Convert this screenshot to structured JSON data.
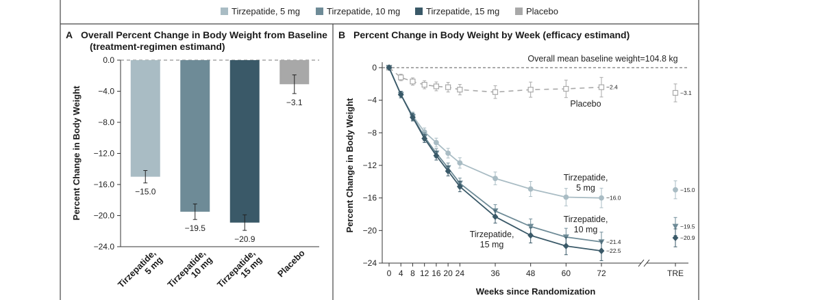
{
  "legend": [
    {
      "label": "Tirzepatide, 5 mg",
      "color": "#a9bcc4"
    },
    {
      "label": "Tirzepatide, 10 mg",
      "color": "#6e8b97"
    },
    {
      "label": "Tirzepatide, 15 mg",
      "color": "#3a5968"
    },
    {
      "label": "Placebo",
      "color": "#a8a8a8"
    }
  ],
  "chart_data": [
    {
      "type": "bar",
      "panel": "A",
      "title": "Overall Percent Change in Body Weight from Baseline",
      "subtitle": "(treatment-regimen estimand)",
      "ylabel": "Percent Change in Body Weight",
      "xlabel": "",
      "ylim": [
        -24.0,
        0.0
      ],
      "yticks": [
        0.0,
        -4.0,
        -8.0,
        -12.0,
        -16.0,
        -20.0,
        -24.0
      ],
      "ytick_labels": [
        "0.0",
        "−4.0",
        "−8.0",
        "−12.0",
        "−16.0",
        "−20.0",
        "−24.0"
      ],
      "categories": [
        [
          "Tirzepatide,",
          "5 mg"
        ],
        [
          "Tirzepatide,",
          "10 mg"
        ],
        [
          "Tirzepatide,",
          "15 mg"
        ],
        [
          "Placebo"
        ]
      ],
      "values": [
        -15.0,
        -19.5,
        -20.9,
        -3.1
      ],
      "value_labels": [
        "−15.0",
        "−19.5",
        "−20.9",
        "−3.1"
      ],
      "error": [
        0.8,
        1.0,
        1.0,
        1.2
      ],
      "colors": [
        "#a9bcc4",
        "#6e8b97",
        "#3a5968",
        "#a8a8a8"
      ]
    },
    {
      "type": "line",
      "panel": "B",
      "title": "Percent Change in Body Weight by Week (efficacy estimand)",
      "ylabel": "Percent Change in Body Weight",
      "xlabel": "Weeks since Randomization",
      "annotation": "Overall mean baseline weight=104.8 kg",
      "ylim": [
        -24,
        0
      ],
      "yticks": [
        0,
        -4,
        -8,
        -12,
        -16,
        -20,
        -24
      ],
      "ytick_labels": [
        "0",
        "−4",
        "−8",
        "−12",
        "−16",
        "−20",
        "−24"
      ],
      "x": [
        0,
        4,
        8,
        12,
        16,
        20,
        24,
        36,
        48,
        60,
        72
      ],
      "xtick_labels": [
        "0",
        "4",
        "8",
        "12",
        "16",
        "20",
        "24",
        "36",
        "48",
        "60",
        "72"
      ],
      "tre_label": "TRE",
      "series": [
        {
          "name": "Placebo",
          "label_lines": [
            "Placebo"
          ],
          "color": "#a8a8a8",
          "dashed": true,
          "marker": "square",
          "values": [
            0,
            -1.2,
            -1.7,
            -2.1,
            -2.3,
            -2.4,
            -2.7,
            -3.0,
            -2.7,
            -2.6,
            -2.4
          ],
          "end_label": "−2.4",
          "tre_value": -3.1,
          "tre_label": "−3.1"
        },
        {
          "name": "Tirzepatide, 5 mg",
          "label_lines": [
            "Tirzepatide,",
            "5 mg"
          ],
          "color": "#a9bcc4",
          "dashed": false,
          "marker": "circle",
          "values": [
            0,
            -3.3,
            -5.9,
            -7.9,
            -9.2,
            -10.5,
            -11.7,
            -13.6,
            -14.9,
            -15.9,
            -16.0
          ],
          "end_label": "−16.0",
          "tre_value": -15.0,
          "tre_label": "−15.0"
        },
        {
          "name": "Tirzepatide, 10 mg",
          "label_lines": [
            "Tirzepatide,",
            "10 mg"
          ],
          "color": "#6e8b97",
          "dashed": false,
          "marker": "triangle",
          "values": [
            0,
            -3.3,
            -6.0,
            -8.5,
            -10.5,
            -12.3,
            -14.2,
            -17.6,
            -19.5,
            -20.8,
            -21.4
          ],
          "end_label": "−21.4",
          "tre_value": -19.5,
          "tre_label": "−19.5"
        },
        {
          "name": "Tirzepatide, 15 mg",
          "label_lines": [
            "Tirzepatide,",
            "15 mg"
          ],
          "color": "#3a5968",
          "dashed": false,
          "marker": "diamond",
          "values": [
            0,
            -3.3,
            -6.1,
            -8.7,
            -10.8,
            -12.7,
            -14.6,
            -18.3,
            -20.6,
            -21.9,
            -22.5
          ],
          "end_label": "−22.5",
          "tre_value": -20.9,
          "tre_label": "−20.9"
        }
      ]
    }
  ]
}
